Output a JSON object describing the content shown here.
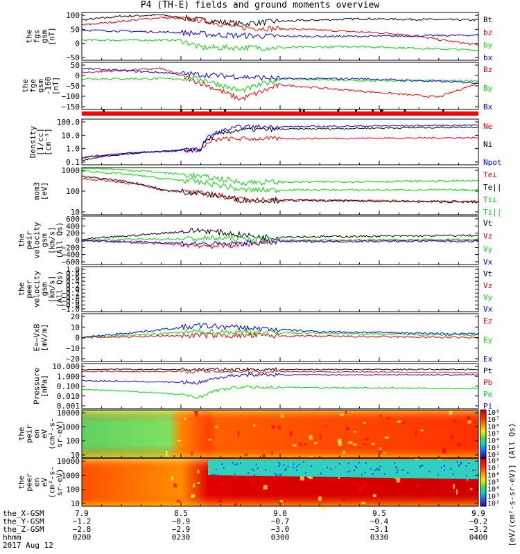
{
  "title": "P4 (TH-E) fields and ground moments overview",
  "colors": {
    "black": "#000000",
    "red": "#ff0000",
    "green": "#00dd00",
    "blue": "#0000ff"
  },
  "panels": [
    {
      "id": "fgs",
      "ylabel": [
        "the",
        "fgs",
        "gsm",
        "[nT]"
      ],
      "ticks": [
        "100",
        "50",
        "0",
        "−50"
      ],
      "legend": [
        {
          "t": "Bt",
          "c": "black"
        },
        {
          "t": "bz",
          "c": "red"
        },
        {
          "t": "by",
          "c": "green"
        },
        {
          "t": "bx",
          "c": "blue"
        }
      ]
    },
    {
      "id": "fge",
      "ylabel": [
        "the",
        "fge",
        "gsm",
        "-160",
        "[nT]"
      ],
      "ticks": [
        "50",
        "0",
        "−50",
        "−100",
        "−150"
      ],
      "legend": [
        {
          "t": "Bz",
          "c": "red"
        },
        {
          "t": "By",
          "c": "green"
        },
        {
          "t": "Bx",
          "c": "blue"
        }
      ]
    },
    {
      "id": "density",
      "ylabel": [
        "Density",
        "[1/cc]",
        "[cm⁻³]"
      ],
      "ticks": [
        "100.0",
        "10.0",
        "1.0",
        "0.1"
      ],
      "legend": [
        {
          "t": "Ne",
          "c": "red"
        },
        {
          "t": "Ni",
          "c": "black"
        },
        {
          "t": "Npot",
          "c": "blue"
        }
      ]
    },
    {
      "id": "temp",
      "ylabel": [
        "mom3",
        "[eV]"
      ],
      "ticks": [
        "1000",
        "100",
        "10"
      ],
      "legend": [
        {
          "t": "Te⊥",
          "c": "red"
        },
        {
          "t": "Te||",
          "c": "black"
        },
        {
          "t": "Ti⊥",
          "c": "green"
        },
        {
          "t": "Ti||",
          "c": "green"
        }
      ]
    },
    {
      "id": "peir_vel",
      "ylabel": [
        "the",
        "peir",
        "velocity",
        "gsm",
        "[km/s]",
        "(All Qs)"
      ],
      "ticks": [
        "600",
        "400",
        "200",
        "0",
        "−200",
        "−400",
        "−600"
      ],
      "legend": [
        {
          "t": "Vt",
          "c": "black"
        },
        {
          "t": "Vz",
          "c": "red"
        },
        {
          "t": "Vy",
          "c": "green"
        },
        {
          "t": "Vx",
          "c": "blue"
        }
      ]
    },
    {
      "id": "peer_vel",
      "ylabel": [
        "the",
        "peer",
        "velocity",
        "gsm",
        "[km/s]",
        "(All Qs)"
      ],
      "ticks": [
        "1.0",
        "0.8",
        "0.6",
        "0.4",
        "0.2",
        "0.0",
        "−0.2",
        "−0.4",
        "−0.6",
        "−0.8",
        "−1.0"
      ],
      "legend": [
        {
          "t": "Vt",
          "c": "black"
        },
        {
          "t": "Vz",
          "c": "red"
        },
        {
          "t": "Vy",
          "c": "green"
        },
        {
          "t": "Vx",
          "c": "blue"
        }
      ]
    },
    {
      "id": "efield",
      "ylabel": [
        "E=−VxB",
        "[mV/m]"
      ],
      "ticks": [
        "20",
        "10",
        "0",
        "−10",
        "−20"
      ],
      "legend": [
        {
          "t": "Ez",
          "c": "red"
        },
        {
          "t": "Ey",
          "c": "green"
        },
        {
          "t": "Ex",
          "c": "blue"
        }
      ]
    },
    {
      "id": "pressure",
      "ylabel": [
        "Pressure",
        "[nPa]"
      ],
      "ticks": [
        "10.000",
        "1.000",
        "0.100",
        "0.010",
        "0.001"
      ],
      "legend": [
        {
          "t": "Pt",
          "c": "black"
        },
        {
          "t": "Pb",
          "c": "red"
        },
        {
          "t": "Pe",
          "c": "green"
        },
        {
          "t": "Pi",
          "c": "blue"
        }
      ]
    },
    {
      "id": "peir_spec",
      "ylabel": [
        "the",
        "peir",
        "en",
        "eV",
        "(cm²-s-",
        "sr-eV)"
      ],
      "ticks": [
        "10000",
        "1000",
        "100",
        "10"
      ]
    },
    {
      "id": "peer_spec",
      "ylabel": [
        "the",
        "peer",
        "en",
        "eV",
        "(cm²-s-",
        "sr-eV)"
      ],
      "ticks": [
        "10000",
        "1000",
        "100",
        "10"
      ]
    }
  ],
  "colorbar": {
    "ticks": [
      "10⁸",
      "10⁷",
      "10⁶",
      "10⁵",
      "10⁴",
      "10³",
      "10²"
    ],
    "ticks_bottom": [
      "10⁸",
      "10⁷",
      "10⁶",
      "10⁵",
      "10⁴",
      "10³",
      "10²"
    ],
    "label": "[eV/(cm²-s-sr-eV)] (All Qs)"
  },
  "ephem": {
    "rows": [
      {
        "label": "the_X-GSM",
        "values": [
          "7.9",
          "8.5",
          "9.0",
          "9.5",
          "9.9"
        ]
      },
      {
        "label": "the_Y-GSM",
        "values": [
          "−1.2",
          "−0.9",
          "−0.7",
          "−0.4",
          "−0.2"
        ]
      },
      {
        "label": "the_Z-GSM",
        "values": [
          "−2.8",
          "−2.9",
          "−3.0",
          "−3.1",
          "−3.2"
        ]
      },
      {
        "label": "hhmm",
        "values": [
          "0200",
          "0230",
          "0300",
          "0330",
          "0400"
        ]
      }
    ],
    "date": "2017 Aug 12"
  },
  "chart_data": {
    "type": "line",
    "title": "P4 (TH-E) fields and ground moments overview",
    "x_label": "hhmm",
    "x_ticks": [
      "0200",
      "0230",
      "0300",
      "0330",
      "0400"
    ],
    "date": "2017 Aug 12",
    "panels": [
      {
        "name": "fgs",
        "ylim": [
          -80,
          110
        ],
        "series": [
          {
            "name": "Bt",
            "trend": [
              [
                0,
                80
              ],
              [
                0.1,
                95
              ],
              [
                0.2,
                100
              ],
              [
                0.3,
                80
              ],
              [
                0.4,
                65
              ],
              [
                0.5,
                75
              ],
              [
                0.7,
                85
              ],
              [
                1,
                80
              ]
            ]
          },
          {
            "name": "bz",
            "trend": [
              [
                0,
                60
              ],
              [
                0.2,
                90
              ],
              [
                0.3,
                80
              ],
              [
                0.4,
                50
              ],
              [
                0.6,
                40
              ],
              [
                0.8,
                25
              ],
              [
                1,
                -20
              ]
            ]
          },
          {
            "name": "by",
            "trend": [
              [
                0,
                0
              ],
              [
                0.25,
                0
              ],
              [
                0.3,
                -30
              ],
              [
                0.5,
                -30
              ],
              [
                0.7,
                -25
              ],
              [
                1,
                -40
              ]
            ]
          },
          {
            "name": "bx",
            "trend": [
              [
                0,
                40
              ],
              [
                0.25,
                30
              ],
              [
                0.35,
                20
              ],
              [
                0.5,
                15
              ],
              [
                0.7,
                15
              ],
              [
                1,
                20
              ]
            ]
          }
        ]
      },
      {
        "name": "fge",
        "ylim": [
          -170,
          60
        ],
        "series": [
          {
            "name": "Bz",
            "trend": [
              [
                0,
                10
              ],
              [
                0.2,
                30
              ],
              [
                0.3,
                -40
              ],
              [
                0.4,
                -120
              ],
              [
                0.5,
                -50
              ],
              [
                0.7,
                -80
              ],
              [
                0.9,
                -110
              ],
              [
                1,
                -40
              ]
            ]
          },
          {
            "name": "By",
            "trend": [
              [
                0,
                -20
              ],
              [
                0.3,
                -20
              ],
              [
                0.4,
                -80
              ],
              [
                0.5,
                -20
              ],
              [
                0.7,
                -30
              ],
              [
                1,
                -30
              ]
            ]
          },
          {
            "name": "Bx",
            "trend": [
              [
                0,
                30
              ],
              [
                0.3,
                0
              ],
              [
                0.5,
                -20
              ],
              [
                0.7,
                -20
              ],
              [
                1,
                -40
              ]
            ]
          }
        ]
      },
      {
        "name": "density",
        "ylim_log": [
          0.1,
          100
        ],
        "series": [
          {
            "name": "Ne",
            "trend": [
              [
                0,
                0.3
              ],
              [
                0.3,
                1
              ],
              [
                0.35,
                5
              ],
              [
                1,
                6
              ]
            ]
          },
          {
            "name": "Ni",
            "trend": [
              [
                0,
                0.2
              ],
              [
                0.3,
                1
              ],
              [
                0.4,
                20
              ],
              [
                1,
                30
              ]
            ]
          },
          {
            "name": "Npot",
            "trend": [
              [
                0,
                0.3
              ],
              [
                0.3,
                1
              ],
              [
                0.4,
                30
              ],
              [
                1,
                40
              ]
            ]
          }
        ]
      },
      {
        "name": "mom3",
        "ylim_log": [
          10,
          3000
        ],
        "series": [
          {
            "name": "Te⊥",
            "trend": [
              [
                0,
                800
              ],
              [
                0.2,
                200
              ],
              [
                0.4,
                60
              ],
              [
                1,
                50
              ]
            ]
          },
          {
            "name": "Te||",
            "trend": [
              [
                0,
                1000
              ],
              [
                0.2,
                200
              ],
              [
                0.4,
                60
              ],
              [
                1,
                45
              ]
            ]
          },
          {
            "name": "Ti⊥",
            "trend": [
              [
                0,
                2000
              ],
              [
                0.2,
                800
              ],
              [
                0.4,
                200
              ],
              [
                1,
                200
              ]
            ]
          },
          {
            "name": "Ti||",
            "trend": [
              [
                0,
                3000
              ],
              [
                0.3,
                1000
              ],
              [
                0.4,
                500
              ],
              [
                1,
                600
              ]
            ]
          }
        ]
      },
      {
        "name": "peir velocity",
        "ylim": [
          -600,
          600
        ],
        "series": [
          {
            "name": "Vt",
            "trend": [
              [
                0,
                20
              ],
              [
                0.3,
                250
              ],
              [
                0.45,
                80
              ],
              [
                1,
                120
              ]
            ]
          },
          {
            "name": "Vz",
            "trend": [
              [
                0,
                0
              ],
              [
                0.35,
                -150
              ],
              [
                0.5,
                -20
              ],
              [
                1,
                0
              ]
            ]
          },
          {
            "name": "Vy",
            "trend": [
              [
                0,
                0
              ],
              [
                0.35,
                50
              ],
              [
                0.5,
                0
              ],
              [
                1,
                20
              ]
            ]
          },
          {
            "name": "Vx",
            "trend": [
              [
                0,
                0
              ],
              [
                0.35,
                -100
              ],
              [
                0.5,
                -30
              ],
              [
                1,
                -20
              ]
            ]
          }
        ]
      },
      {
        "name": "E=−VxB",
        "ylim": [
          -20,
          20
        ],
        "series": [
          {
            "name": "Ez",
            "trend": [
              [
                0,
                0
              ],
              [
                0.3,
                2
              ],
              [
                1,
                0
              ]
            ]
          },
          {
            "name": "Ey",
            "trend": [
              [
                0,
                0
              ],
              [
                0.3,
                5
              ],
              [
                1,
                2
              ]
            ]
          },
          {
            "name": "Ex",
            "trend": [
              [
                0,
                0
              ],
              [
                0.3,
                10
              ],
              [
                0.6,
                5
              ],
              [
                1,
                3
              ]
            ]
          }
        ]
      },
      {
        "name": "Pressure",
        "ylim_log": [
          0.001,
          10
        ],
        "series": [
          {
            "name": "Pt",
            "trend": [
              [
                0,
                3
              ],
              [
                1,
                3
              ]
            ]
          },
          {
            "name": "Pb",
            "trend": [
              [
                0,
                2
              ],
              [
                0.5,
                2
              ],
              [
                1,
                1.5
              ]
            ]
          },
          {
            "name": "Pe",
            "trend": [
              [
                0,
                0.05
              ],
              [
                0.3,
                0.01
              ],
              [
                0.4,
                0.08
              ],
              [
                1,
                0.06
              ]
            ]
          },
          {
            "name": "Pi",
            "trend": [
              [
                0,
                0.3
              ],
              [
                0.3,
                0.2
              ],
              [
                0.4,
                1.0
              ],
              [
                1,
                1.0
              ]
            ]
          }
        ]
      }
    ]
  }
}
